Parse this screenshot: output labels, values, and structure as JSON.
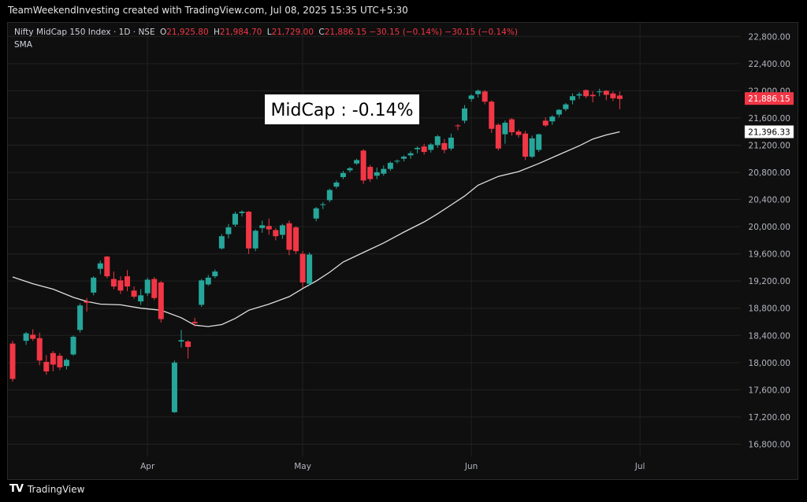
{
  "attribution": "TeamWeekendInvesting created with TradingView.com, Jul 08, 2025 15:35 UTC+5:30",
  "legend": {
    "symbol": "Nifty MidCap 150 Index · 1D · NSE",
    "open_label": "O",
    "open": "21,925.80",
    "high_label": "H",
    "high": "21,984.70",
    "low_label": "L",
    "low": "21,729.00",
    "close_label": "C",
    "close": "21,886.15",
    "change": "−30.15 (−0.14%)",
    "change2": "−30.15 (−0.14%)",
    "indicator": "SMA"
  },
  "annotation": "MidCap : -0.14%",
  "footer": {
    "logo": "TV",
    "brand": "TradingView"
  },
  "colors": {
    "up": "#26a69a",
    "down": "#f23645",
    "sma": "#e0e0e0",
    "grid": "#222222",
    "text": "#b2b5be",
    "price_badge": "#f23645",
    "sma_badge_bg": "#ffffff",
    "background": "#0f0f0f"
  },
  "chart_data": {
    "type": "candlestick",
    "title": "Nifty MidCap 150 Index · 1D · NSE",
    "y_axis": {
      "ticks": [
        16800,
        17200,
        17600,
        18000,
        18400,
        18800,
        19200,
        19600,
        20000,
        20400,
        20800,
        21200,
        21600,
        22000,
        22400,
        22800
      ],
      "tick_labels": [
        "16,800.00",
        "17,200.00",
        "17,600.00",
        "18,000.00",
        "18,400.00",
        "18,800.00",
        "19,200.00",
        "19,600.00",
        "20,000.00",
        "20,400.00",
        "20,800.00",
        "21,200.00",
        "21,600.00",
        "22,000.00",
        "22,400.00",
        "22,800.00"
      ],
      "range": [
        16620,
        23000
      ],
      "position": "right"
    },
    "x_axis": {
      "ticks": [
        {
          "label": "Apr",
          "index": 20
        },
        {
          "label": "May",
          "index": 43
        },
        {
          "label": "Jun",
          "index": 68
        },
        {
          "label": "Jul",
          "index": 93
        }
      ],
      "count": 101
    },
    "last_price": {
      "value": 21886.15,
      "label": "21,886.15"
    },
    "sma_last": {
      "value": 21396.33,
      "label": "21,396.33"
    },
    "candles": [
      {
        "i": 0,
        "o": 18280,
        "h": 18320,
        "c": 17760,
        "l": 17720
      },
      {
        "i": 2,
        "o": 18320,
        "h": 18450,
        "c": 18430,
        "l": 18260
      },
      {
        "i": 3,
        "o": 18410,
        "h": 18490,
        "c": 18350,
        "l": 18320
      },
      {
        "i": 4,
        "o": 18360,
        "h": 18440,
        "c": 18030,
        "l": 17960
      },
      {
        "i": 5,
        "o": 18010,
        "h": 18110,
        "c": 17870,
        "l": 17820
      },
      {
        "i": 6,
        "o": 18140,
        "h": 18170,
        "c": 17970,
        "l": 17870
      },
      {
        "i": 7,
        "o": 18100,
        "h": 18140,
        "c": 17930,
        "l": 17890
      },
      {
        "i": 8,
        "o": 17950,
        "h": 18060,
        "c": 18040,
        "l": 17900
      },
      {
        "i": 9,
        "o": 18120,
        "h": 18400,
        "c": 18380,
        "l": 18100
      },
      {
        "i": 10,
        "o": 18480,
        "h": 18870,
        "c": 18840,
        "l": 18440
      },
      {
        "i": 11,
        "o": 18900,
        "h": 18950,
        "c": 18880,
        "l": 18750
      },
      {
        "i": 12,
        "o": 19030,
        "h": 19270,
        "c": 19250,
        "l": 18990
      },
      {
        "i": 13,
        "o": 19380,
        "h": 19500,
        "c": 19460,
        "l": 19300
      },
      {
        "i": 14,
        "o": 19560,
        "h": 19570,
        "c": 19270,
        "l": 19240
      },
      {
        "i": 15,
        "o": 19230,
        "h": 19340,
        "c": 19120,
        "l": 19080
      },
      {
        "i": 16,
        "o": 19210,
        "h": 19270,
        "c": 19060,
        "l": 19010
      },
      {
        "i": 17,
        "o": 19270,
        "h": 19360,
        "c": 19120,
        "l": 19050
      },
      {
        "i": 18,
        "o": 19060,
        "h": 19120,
        "c": 18970,
        "l": 18940
      },
      {
        "i": 19,
        "o": 18900,
        "h": 19080,
        "c": 18990,
        "l": 18850
      },
      {
        "i": 20,
        "o": 19020,
        "h": 19250,
        "c": 19220,
        "l": 18980
      },
      {
        "i": 21,
        "o": 19230,
        "h": 19260,
        "c": 18950,
        "l": 18920
      },
      {
        "i": 22,
        "o": 19180,
        "h": 19200,
        "c": 18640,
        "l": 18590
      },
      {
        "i": 24,
        "o": 17270,
        "h": 18030,
        "c": 18000,
        "l": 17260
      },
      {
        "i": 25,
        "o": 18310,
        "h": 18480,
        "c": 18330,
        "l": 18220
      },
      {
        "i": 26,
        "o": 18310,
        "h": 18330,
        "c": 18230,
        "l": 18060
      },
      {
        "i": 27,
        "o": 18600,
        "h": 18660,
        "c": 18580,
        "l": 18530
      },
      {
        "i": 28,
        "o": 18850,
        "h": 19230,
        "c": 19210,
        "l": 18820
      },
      {
        "i": 29,
        "o": 19150,
        "h": 19290,
        "c": 19250,
        "l": 19130
      },
      {
        "i": 30,
        "o": 19270,
        "h": 19370,
        "c": 19340,
        "l": 19240
      },
      {
        "i": 31,
        "o": 19680,
        "h": 19890,
        "c": 19860,
        "l": 19660
      },
      {
        "i": 32,
        "o": 19890,
        "h": 20040,
        "c": 19990,
        "l": 19830
      },
      {
        "i": 33,
        "o": 20030,
        "h": 20220,
        "c": 20190,
        "l": 20000
      },
      {
        "i": 34,
        "o": 20200,
        "h": 20240,
        "c": 20220,
        "l": 20150
      },
      {
        "i": 35,
        "o": 20220,
        "h": 20230,
        "c": 19680,
        "l": 19600
      },
      {
        "i": 36,
        "o": 19680,
        "h": 19960,
        "c": 19940,
        "l": 19640
      },
      {
        "i": 37,
        "o": 19980,
        "h": 20090,
        "c": 20020,
        "l": 19910
      },
      {
        "i": 38,
        "o": 20010,
        "h": 20120,
        "c": 19960,
        "l": 19880
      },
      {
        "i": 39,
        "o": 19950,
        "h": 19980,
        "c": 19860,
        "l": 19800
      },
      {
        "i": 40,
        "o": 19880,
        "h": 20040,
        "c": 20020,
        "l": 19820
      },
      {
        "i": 41,
        "o": 20050,
        "h": 20090,
        "c": 19660,
        "l": 19580
      },
      {
        "i": 42,
        "o": 19990,
        "h": 20010,
        "c": 19640,
        "l": 19600
      },
      {
        "i": 43,
        "o": 19600,
        "h": 19640,
        "c": 19180,
        "l": 19100
      },
      {
        "i": 44,
        "o": 19160,
        "h": 19620,
        "c": 19590,
        "l": 19130
      },
      {
        "i": 45,
        "o": 20120,
        "h": 20290,
        "c": 20270,
        "l": 20080
      },
      {
        "i": 46,
        "o": 20320,
        "h": 20360,
        "c": 20330,
        "l": 20260
      },
      {
        "i": 47,
        "o": 20390,
        "h": 20560,
        "c": 20540,
        "l": 20360
      },
      {
        "i": 48,
        "o": 20590,
        "h": 20680,
        "c": 20650,
        "l": 20560
      },
      {
        "i": 49,
        "o": 20730,
        "h": 20820,
        "c": 20790,
        "l": 20700
      },
      {
        "i": 50,
        "o": 20830,
        "h": 20880,
        "c": 20860,
        "l": 20800
      },
      {
        "i": 51,
        "o": 20930,
        "h": 21000,
        "c": 20980,
        "l": 20910
      },
      {
        "i": 52,
        "o": 21120,
        "h": 21140,
        "c": 20680,
        "l": 20630
      },
      {
        "i": 53,
        "o": 20880,
        "h": 20910,
        "c": 20700,
        "l": 20660
      },
      {
        "i": 54,
        "o": 20750,
        "h": 20870,
        "c": 20800,
        "l": 20700
      },
      {
        "i": 55,
        "o": 20780,
        "h": 20900,
        "c": 20850,
        "l": 20750
      },
      {
        "i": 56,
        "o": 20850,
        "h": 20960,
        "c": 20940,
        "l": 20820
      },
      {
        "i": 57,
        "o": 20960,
        "h": 20990,
        "c": 20970,
        "l": 20930
      },
      {
        "i": 58,
        "o": 21000,
        "h": 21050,
        "c": 21030,
        "l": 20960
      },
      {
        "i": 59,
        "o": 21050,
        "h": 21110,
        "c": 21080,
        "l": 21000
      },
      {
        "i": 60,
        "o": 21140,
        "h": 21180,
        "c": 21160,
        "l": 21080
      },
      {
        "i": 61,
        "o": 21180,
        "h": 21220,
        "c": 21100,
        "l": 21060
      },
      {
        "i": 62,
        "o": 21130,
        "h": 21230,
        "c": 21210,
        "l": 21090
      },
      {
        "i": 63,
        "o": 21200,
        "h": 21350,
        "c": 21330,
        "l": 21160
      },
      {
        "i": 64,
        "o": 21230,
        "h": 21290,
        "c": 21130,
        "l": 21080
      },
      {
        "i": 65,
        "o": 21150,
        "h": 21370,
        "c": 21310,
        "l": 21120
      },
      {
        "i": 66,
        "o": 21490,
        "h": 21510,
        "c": 21480,
        "l": 21420
      },
      {
        "i": 67,
        "o": 21560,
        "h": 21790,
        "c": 21740,
        "l": 21520
      },
      {
        "i": 68,
        "o": 21880,
        "h": 21950,
        "c": 21930,
        "l": 21840
      },
      {
        "i": 69,
        "o": 21950,
        "h": 22020,
        "c": 22000,
        "l": 21900
      },
      {
        "i": 70,
        "o": 21990,
        "h": 22010,
        "c": 21840,
        "l": 21800
      },
      {
        "i": 71,
        "o": 21840,
        "h": 21860,
        "c": 21440,
        "l": 21380
      },
      {
        "i": 72,
        "o": 21500,
        "h": 21520,
        "c": 21150,
        "l": 21120
      },
      {
        "i": 73,
        "o": 21360,
        "h": 21560,
        "c": 21530,
        "l": 21220
      },
      {
        "i": 74,
        "o": 21580,
        "h": 21600,
        "c": 21390,
        "l": 21340
      },
      {
        "i": 75,
        "o": 21400,
        "h": 21430,
        "c": 21350,
        "l": 21310
      },
      {
        "i": 76,
        "o": 21370,
        "h": 21410,
        "c": 21030,
        "l": 20980
      },
      {
        "i": 77,
        "o": 21030,
        "h": 21340,
        "c": 21300,
        "l": 21010
      },
      {
        "i": 78,
        "o": 21130,
        "h": 21370,
        "c": 21360,
        "l": 21100
      },
      {
        "i": 79,
        "o": 21560,
        "h": 21610,
        "c": 21490,
        "l": 21470
      },
      {
        "i": 80,
        "o": 21550,
        "h": 21640,
        "c": 21620,
        "l": 21500
      },
      {
        "i": 81,
        "o": 21650,
        "h": 21730,
        "c": 21720,
        "l": 21610
      },
      {
        "i": 82,
        "o": 21730,
        "h": 21820,
        "c": 21800,
        "l": 21700
      },
      {
        "i": 83,
        "o": 21860,
        "h": 21960,
        "c": 21920,
        "l": 21800
      },
      {
        "i": 84,
        "o": 21930,
        "h": 21980,
        "c": 21950,
        "l": 21880
      },
      {
        "i": 85,
        "o": 22010,
        "h": 22020,
        "c": 21920,
        "l": 21890
      },
      {
        "i": 86,
        "o": 21940,
        "h": 21990,
        "c": 21920,
        "l": 21830
      },
      {
        "i": 87,
        "o": 21980,
        "h": 22030,
        "c": 21990,
        "l": 21920
      },
      {
        "i": 88,
        "o": 22000,
        "h": 22010,
        "c": 21940,
        "l": 21860
      },
      {
        "i": 89,
        "o": 21960,
        "h": 21990,
        "c": 21890,
        "l": 21850
      },
      {
        "i": 90,
        "o": 21930,
        "h": 21990,
        "c": 21880,
        "l": 21730
      }
    ],
    "sma": [
      {
        "i": 0,
        "v": 19260
      },
      {
        "i": 3,
        "v": 19160
      },
      {
        "i": 6,
        "v": 19080
      },
      {
        "i": 9,
        "v": 18960
      },
      {
        "i": 11,
        "v": 18900
      },
      {
        "i": 13,
        "v": 18860
      },
      {
        "i": 16,
        "v": 18850
      },
      {
        "i": 19,
        "v": 18800
      },
      {
        "i": 22,
        "v": 18770
      },
      {
        "i": 25,
        "v": 18660
      },
      {
        "i": 27,
        "v": 18550
      },
      {
        "i": 29,
        "v": 18530
      },
      {
        "i": 31,
        "v": 18560
      },
      {
        "i": 33,
        "v": 18650
      },
      {
        "i": 35,
        "v": 18770
      },
      {
        "i": 38,
        "v": 18860
      },
      {
        "i": 41,
        "v": 18970
      },
      {
        "i": 43,
        "v": 19090
      },
      {
        "i": 45,
        "v": 19200
      },
      {
        "i": 47,
        "v": 19330
      },
      {
        "i": 49,
        "v": 19480
      },
      {
        "i": 52,
        "v": 19620
      },
      {
        "i": 55,
        "v": 19760
      },
      {
        "i": 58,
        "v": 19920
      },
      {
        "i": 61,
        "v": 20070
      },
      {
        "i": 63,
        "v": 20190
      },
      {
        "i": 65,
        "v": 20320
      },
      {
        "i": 67,
        "v": 20450
      },
      {
        "i": 69,
        "v": 20610
      },
      {
        "i": 72,
        "v": 20740
      },
      {
        "i": 75,
        "v": 20810
      },
      {
        "i": 78,
        "v": 20930
      },
      {
        "i": 81,
        "v": 21060
      },
      {
        "i": 84,
        "v": 21190
      },
      {
        "i": 86,
        "v": 21290
      },
      {
        "i": 88,
        "v": 21350
      },
      {
        "i": 90,
        "v": 21396
      }
    ]
  }
}
